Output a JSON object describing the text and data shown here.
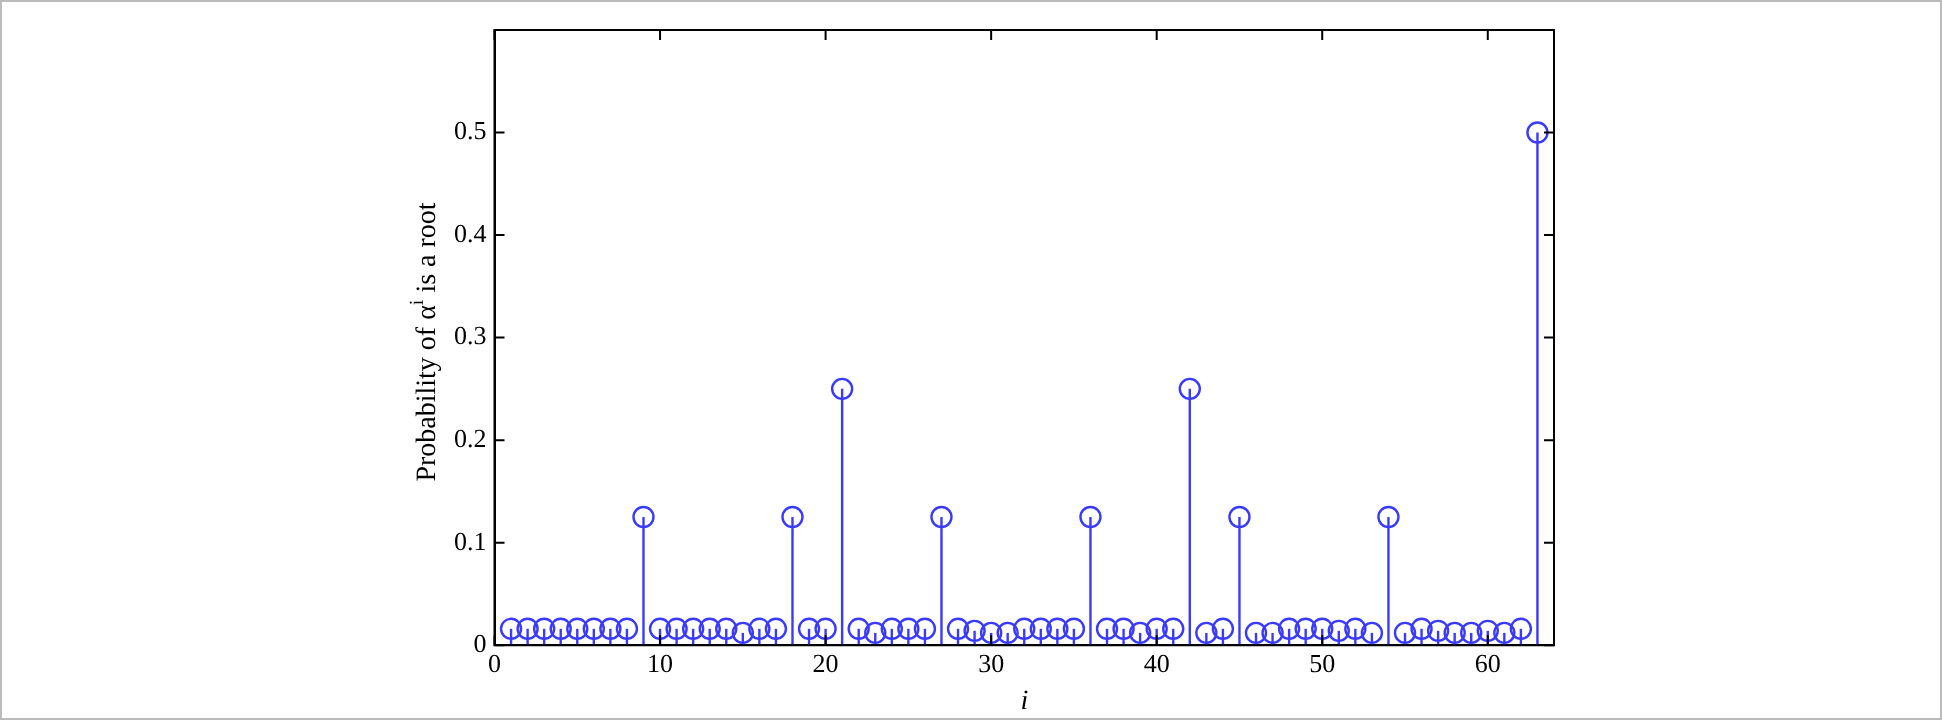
{
  "chart_data": {
    "type": "lollipop",
    "xlabel": "i",
    "ylabel": "Probability of α$^{i}$ is a root",
    "x": [
      1,
      2,
      3,
      4,
      5,
      6,
      7,
      8,
      9,
      10,
      11,
      12,
      13,
      14,
      15,
      16,
      17,
      18,
      19,
      20,
      21,
      22,
      23,
      24,
      25,
      26,
      27,
      28,
      29,
      30,
      31,
      32,
      33,
      34,
      35,
      36,
      37,
      38,
      39,
      40,
      41,
      42,
      43,
      44,
      45,
      46,
      47,
      48,
      49,
      50,
      51,
      52,
      53,
      54,
      55,
      56,
      57,
      58,
      59,
      60,
      61,
      62,
      63
    ],
    "values": [
      0.016,
      0.016,
      0.016,
      0.016,
      0.016,
      0.016,
      0.016,
      0.016,
      0.125,
      0.016,
      0.016,
      0.016,
      0.016,
      0.016,
      0.012,
      0.016,
      0.016,
      0.125,
      0.016,
      0.016,
      0.25,
      0.016,
      0.012,
      0.016,
      0.016,
      0.016,
      0.125,
      0.016,
      0.014,
      0.012,
      0.012,
      0.016,
      0.016,
      0.016,
      0.016,
      0.125,
      0.016,
      0.016,
      0.012,
      0.016,
      0.016,
      0.25,
      0.012,
      0.016,
      0.125,
      0.012,
      0.012,
      0.016,
      0.016,
      0.016,
      0.014,
      0.016,
      0.012,
      0.125,
      0.012,
      0.016,
      0.014,
      0.012,
      0.012,
      0.014,
      0.012,
      0.016,
      0.5
    ],
    "color": "#3a3aff",
    "marker": "circle",
    "grid": false,
    "xlim": [
      0,
      64
    ],
    "xticks": [
      0,
      10,
      20,
      30,
      40,
      50,
      60
    ],
    "ylim": [
      0,
      0.6
    ],
    "yticks": [
      0,
      0.1,
      0.2,
      0.3,
      0.4,
      0.5
    ]
  }
}
